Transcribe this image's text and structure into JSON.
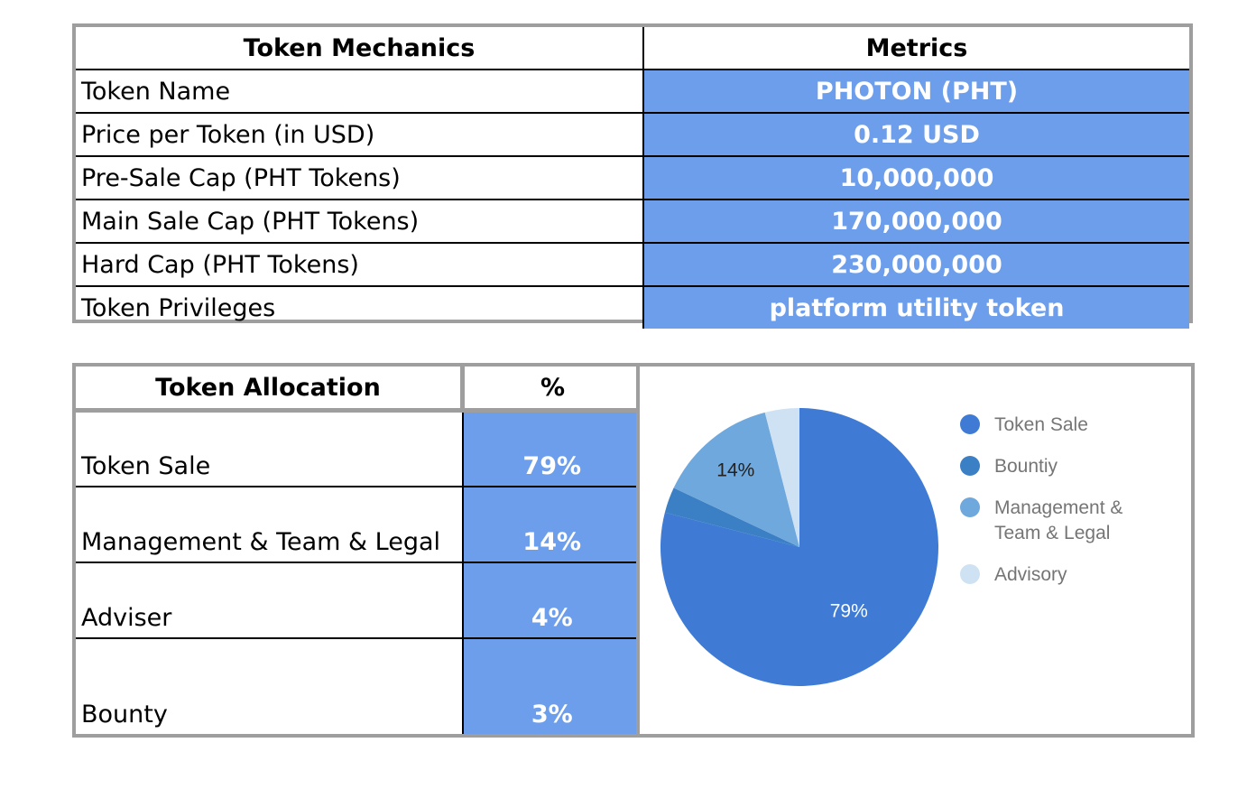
{
  "mechanics": {
    "headers": [
      "Token Mechanics",
      "Metrics"
    ],
    "rows": [
      {
        "label": "Token Name",
        "value": "PHOTON (PHT)"
      },
      {
        "label": "Price per Token (in USD)",
        "value": "0.12 USD"
      },
      {
        "label": "Pre-Sale Cap (PHT Tokens)",
        "value": "10,000,000"
      },
      {
        "label": "Main Sale Cap (PHT Tokens)",
        "value": "170,000,000"
      },
      {
        "label": "Hard Cap (PHT Tokens)",
        "value": "230,000,000"
      },
      {
        "label": "Token Privileges",
        "value": "platform utility token"
      }
    ]
  },
  "allocation": {
    "headers": [
      "Token Allocation",
      "%"
    ],
    "rows": [
      {
        "label": "Token Sale",
        "value": "79%"
      },
      {
        "label": "Management & Team & Legal",
        "value": "14%"
      },
      {
        "label": "Adviser",
        "value": "4%"
      },
      {
        "label": "Bounty",
        "value": "3%"
      }
    ]
  },
  "colors": {
    "cell_fill": "#6d9eeb",
    "border_gray": "#9e9e9e"
  },
  "chart_data": {
    "type": "pie",
    "title": "",
    "slices": [
      {
        "name": "Token Sale",
        "value": 79,
        "color": "#3f7bd4",
        "label": "79%",
        "label_color": "#ffffff"
      },
      {
        "name": "Bountiy",
        "value": 3,
        "color": "#3b7fc4",
        "label": "",
        "label_color": "#ffffff"
      },
      {
        "name": "Management & Team & Legal",
        "value": 14,
        "color": "#6fa8dc",
        "label": "14%",
        "label_color": "#222222"
      },
      {
        "name": "Advisory",
        "value": 4,
        "color": "#cfe2f3",
        "label": "",
        "label_color": "#222222"
      }
    ],
    "legend": {
      "position": "right",
      "entries": [
        {
          "lines": [
            "Token Sale"
          ],
          "color": "#3f7bd4"
        },
        {
          "lines": [
            "Bountiy"
          ],
          "color": "#3b7fc4"
        },
        {
          "lines": [
            "Management &",
            "Team & Legal"
          ],
          "color": "#6fa8dc"
        },
        {
          "lines": [
            "Advisory"
          ],
          "color": "#cfe2f3"
        }
      ]
    }
  }
}
